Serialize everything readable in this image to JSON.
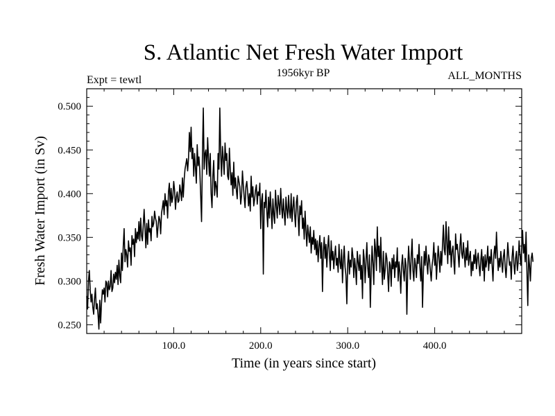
{
  "chart_data": {
    "type": "line",
    "title": "S. Atlantic Net Fresh Water Import",
    "subtitle_left": "Expt = tewtl",
    "subtitle_center": "1956kyr BP",
    "subtitle_right": "ALL_MONTHS",
    "xlabel": "Time (in years since start)",
    "ylabel": "Fresh Water Import (in Sv)",
    "xlim": [
      0,
      500
    ],
    "ylim": [
      0.24,
      0.52
    ],
    "x_ticks": [
      100,
      200,
      300,
      400
    ],
    "x_tick_labels": [
      "100.0",
      "200.0",
      "300.0",
      "400.0"
    ],
    "y_ticks": [
      0.25,
      0.3,
      0.35,
      0.4,
      0.45,
      0.5
    ],
    "y_tick_labels": [
      "0.250",
      "0.300",
      "0.350",
      "0.400",
      "0.450",
      "0.500"
    ],
    "grid": false,
    "line_color": "#000000",
    "series": [
      {
        "name": "fresh water import",
        "x_start": 0,
        "x_step": 1,
        "values": [
          0.283,
          0.268,
          0.3,
          0.312,
          0.29,
          0.276,
          0.285,
          0.27,
          0.262,
          0.28,
          0.292,
          0.268,
          0.274,
          0.262,
          0.245,
          0.278,
          0.252,
          0.275,
          0.29,
          0.285,
          0.292,
          0.276,
          0.3,
          0.298,
          0.282,
          0.3,
          0.29,
          0.294,
          0.312,
          0.288,
          0.292,
          0.308,
          0.298,
          0.31,
          0.302,
          0.318,
          0.296,
          0.324,
          0.306,
          0.298,
          0.332,
          0.312,
          0.34,
          0.36,
          0.322,
          0.336,
          0.33,
          0.316,
          0.346,
          0.334,
          0.338,
          0.318,
          0.352,
          0.342,
          0.348,
          0.328,
          0.36,
          0.344,
          0.356,
          0.348,
          0.368,
          0.346,
          0.372,
          0.352,
          0.346,
          0.364,
          0.382,
          0.36,
          0.338,
          0.366,
          0.342,
          0.37,
          0.356,
          0.36,
          0.346,
          0.374,
          0.362,
          0.366,
          0.38,
          0.372,
          0.368,
          0.35,
          0.362,
          0.374,
          0.37,
          0.354,
          0.378,
          0.384,
          0.392,
          0.376,
          0.4,
          0.386,
          0.392,
          0.372,
          0.402,
          0.412,
          0.386,
          0.406,
          0.39,
          0.396,
          0.414,
          0.404,
          0.382,
          0.396,
          0.402,
          0.39,
          0.392,
          0.41,
          0.402,
          0.392,
          0.418,
          0.396,
          0.416,
          0.428,
          0.434,
          0.44,
          0.426,
          0.44,
          0.47,
          0.448,
          0.476,
          0.44,
          0.452,
          0.42,
          0.446,
          0.43,
          0.412,
          0.456,
          0.432,
          0.442,
          0.426,
          0.398,
          0.368,
          0.442,
          0.498,
          0.428,
          0.446,
          0.45,
          0.422,
          0.464,
          0.44,
          0.42,
          0.446,
          0.4,
          0.384,
          0.42,
          0.438,
          0.398,
          0.414,
          0.408,
          0.396,
          0.446,
          0.428,
          0.498,
          0.446,
          0.42,
          0.454,
          0.44,
          0.422,
          0.458,
          0.438,
          0.446,
          0.42,
          0.416,
          0.452,
          0.428,
          0.41,
          0.424,
          0.398,
          0.436,
          0.406,
          0.418,
          0.404,
          0.394,
          0.42,
          0.414,
          0.408,
          0.388,
          0.398,
          0.426,
          0.41,
          0.396,
          0.384,
          0.408,
          0.414,
          0.402,
          0.386,
          0.4,
          0.38,
          0.42,
          0.396,
          0.408,
          0.386,
          0.394,
          0.404,
          0.41,
          0.388,
          0.402,
          0.398,
          0.412,
          0.36,
          0.392,
          0.4,
          0.308,
          0.39,
          0.384,
          0.404,
          0.38,
          0.362,
          0.396,
          0.372,
          0.402,
          0.382,
          0.36,
          0.394,
          0.376,
          0.366,
          0.404,
          0.386,
          0.372,
          0.398,
          0.388,
          0.376,
          0.406,
          0.384,
          0.372,
          0.394,
          0.378,
          0.364,
          0.396,
          0.382,
          0.372,
          0.398,
          0.38,
          0.372,
          0.4,
          0.368,
          0.384,
          0.396,
          0.376,
          0.362,
          0.39,
          0.398,
          0.374,
          0.352,
          0.386,
          0.376,
          0.392,
          0.36,
          0.372,
          0.348,
          0.38,
          0.358,
          0.34,
          0.364,
          0.354,
          0.344,
          0.362,
          0.332,
          0.35,
          0.342,
          0.358,
          0.336,
          0.348,
          0.33,
          0.346,
          0.322,
          0.34,
          0.352,
          0.326,
          0.344,
          0.288,
          0.334,
          0.35,
          0.326,
          0.342,
          0.316,
          0.338,
          0.352,
          0.33,
          0.312,
          0.346,
          0.324,
          0.334,
          0.314,
          0.33,
          0.34,
          0.318,
          0.326,
          0.31,
          0.342,
          0.322,
          0.314,
          0.336,
          0.298,
          0.324,
          0.34,
          0.316,
          0.306,
          0.274,
          0.32,
          0.334,
          0.308,
          0.324,
          0.316,
          0.338,
          0.328,
          0.304,
          0.326,
          0.314,
          0.296,
          0.334,
          0.322,
          0.312,
          0.33,
          0.302,
          0.318,
          0.28,
          0.336,
          0.326,
          0.298,
          0.322,
          0.344,
          0.316,
          0.304,
          0.33,
          0.27,
          0.31,
          0.34,
          0.32,
          0.296,
          0.348,
          0.336,
          0.312,
          0.362,
          0.328,
          0.34,
          0.31,
          0.35,
          0.318,
          0.296,
          0.334,
          0.302,
          0.312,
          0.332,
          0.326,
          0.308,
          0.288,
          0.322,
          0.318,
          0.294,
          0.326,
          0.314,
          0.33,
          0.304,
          0.322,
          0.316,
          0.338,
          0.3,
          0.322,
          0.31,
          0.286,
          0.318,
          0.33,
          0.312,
          0.3,
          0.326,
          0.318,
          0.262,
          0.314,
          0.34,
          0.322,
          0.302,
          0.328,
          0.348,
          0.312,
          0.3,
          0.326,
          0.318,
          0.304,
          0.33,
          0.32,
          0.342,
          0.316,
          0.3,
          0.328,
          0.27,
          0.31,
          0.334,
          0.318,
          0.34,
          0.322,
          0.308,
          0.33,
          0.324,
          0.312,
          0.3,
          0.318,
          0.326,
          0.344,
          0.318,
          0.332,
          0.302,
          0.322,
          0.34,
          0.326,
          0.31,
          0.334,
          0.318,
          0.342,
          0.364,
          0.336,
          0.33,
          0.368,
          0.344,
          0.32,
          0.362,
          0.33,
          0.346,
          0.316,
          0.334,
          0.34,
          0.322,
          0.308,
          0.354,
          0.336,
          0.342,
          0.33,
          0.316,
          0.34,
          0.354,
          0.332,
          0.326,
          0.344,
          0.33,
          0.316,
          0.338,
          0.324,
          0.346,
          0.318,
          0.328,
          0.334,
          0.306,
          0.322,
          0.312,
          0.33,
          0.32,
          0.336,
          0.314,
          0.326,
          0.332,
          0.318,
          0.306,
          0.324,
          0.336,
          0.312,
          0.328,
          0.3,
          0.33,
          0.316,
          0.324,
          0.34,
          0.312,
          0.328,
          0.32,
          0.336,
          0.318,
          0.3,
          0.33,
          0.34,
          0.326,
          0.356,
          0.33,
          0.312,
          0.326,
          0.316,
          0.334,
          0.322,
          0.31,
          0.328,
          0.336,
          0.316,
          0.304,
          0.322,
          0.344,
          0.33,
          0.318,
          0.322,
          0.302,
          0.328,
          0.34,
          0.32,
          0.308,
          0.326,
          0.334,
          0.312,
          0.322,
          0.346,
          0.33,
          0.318,
          0.338,
          0.358,
          0.332,
          0.342,
          0.322,
          0.356,
          0.312,
          0.272,
          0.33,
          0.318,
          0.3,
          0.326,
          0.332,
          0.322
        ]
      }
    ]
  }
}
